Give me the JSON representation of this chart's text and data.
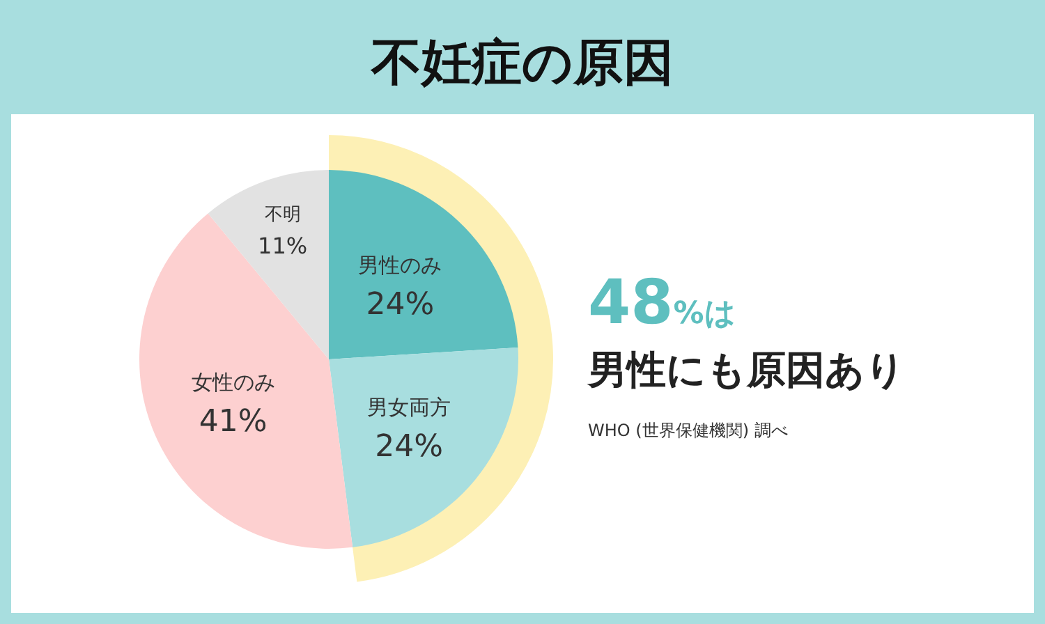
{
  "chart_data": {
    "type": "pie",
    "title": "不妊症の原因",
    "categories": [
      "男性のみ",
      "男女両方",
      "女性のみ",
      "不明"
    ],
    "values": [
      24,
      24,
      41,
      11
    ],
    "value_labels": [
      "24%",
      "24%",
      "41%",
      "11%"
    ],
    "colors": [
      "#5ebfbf",
      "#a8dedf",
      "#fdd0d0",
      "#e2e2e2"
    ],
    "annotations": [
      "**48**%は",
      "男性にも原因あり",
      "WHO (世界保健機関) 調べ"
    ]
  }
}
